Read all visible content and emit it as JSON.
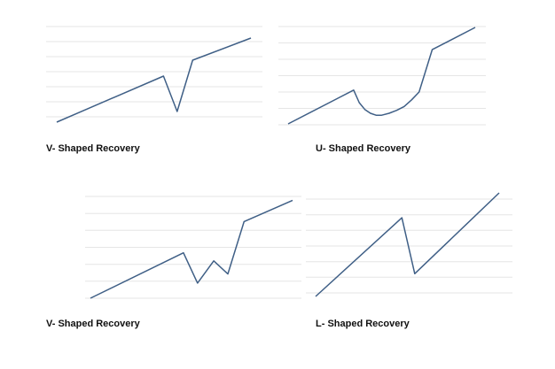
{
  "colors": {
    "line": "#3f5f86",
    "grid": "#e6e6e6",
    "background": "#ffffff",
    "caption": "#111111"
  },
  "chart_data": [
    {
      "type": "line",
      "title": "V- Shaped Recovery",
      "grid": true,
      "legend": "none",
      "xlim": [
        0,
        100
      ],
      "ylim": [
        0,
        100
      ],
      "series": [
        {
          "x": [
            0,
            55,
            62,
            70,
            100
          ],
          "y": [
            0,
            52,
            12,
            70,
            95
          ]
        }
      ]
    },
    {
      "type": "line",
      "title": "U- Shaped Recovery",
      "grid": true,
      "legend": "none",
      "xlim": [
        0,
        100
      ],
      "ylim": [
        0,
        100
      ],
      "series": [
        {
          "x": [
            0,
            35,
            38,
            41,
            44,
            47,
            50,
            54,
            58,
            62,
            66,
            70,
            77,
            100
          ],
          "y": [
            0,
            35,
            22,
            15,
            11,
            9,
            9,
            11,
            14,
            18,
            25,
            33,
            77,
            100
          ]
        }
      ]
    },
    {
      "type": "line",
      "title": "V- Shaped Recovery",
      "grid": true,
      "legend": "none",
      "xlim": [
        0,
        100
      ],
      "ylim": [
        0,
        100
      ],
      "series": [
        {
          "x": [
            0,
            46,
            53,
            61,
            68,
            76,
            100
          ],
          "y": [
            0,
            45,
            15,
            37,
            24,
            76,
            97
          ]
        }
      ]
    },
    {
      "type": "line",
      "title": "L- Shaped Recovery",
      "grid": true,
      "legend": "none",
      "xlim": [
        0,
        100
      ],
      "ylim": [
        0,
        100
      ],
      "series": [
        {
          "x": [
            0,
            47,
            54,
            100
          ],
          "y": [
            0,
            76,
            22,
            100
          ]
        }
      ]
    }
  ]
}
